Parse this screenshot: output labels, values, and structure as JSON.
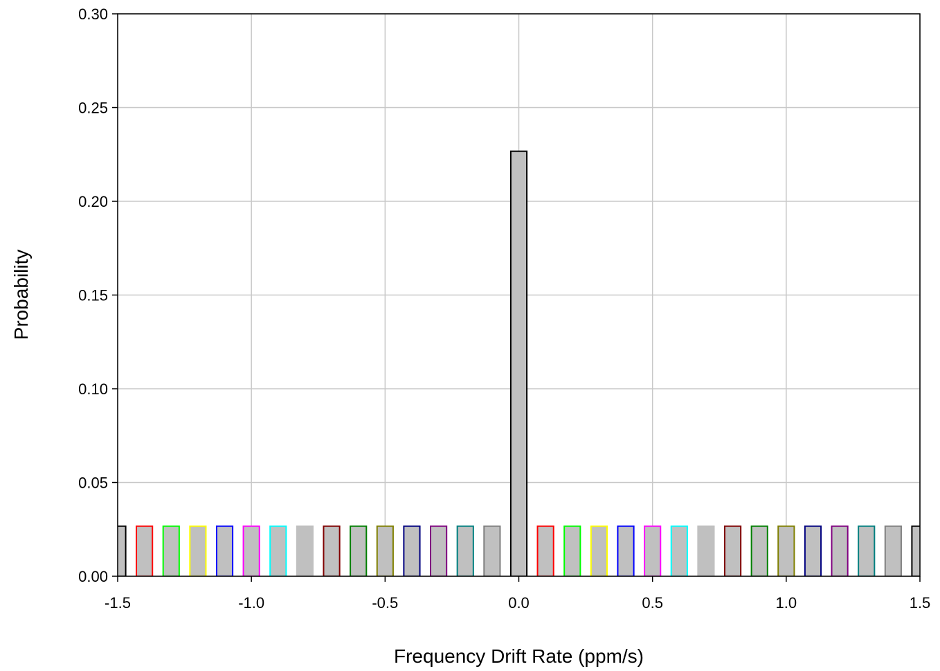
{
  "chart_data": {
    "type": "bar",
    "xlabel": "Frequency Drift Rate (ppm/s)",
    "ylabel": "Probability",
    "xlim": [
      -1.5,
      1.5
    ],
    "ylim": [
      0,
      0.3
    ],
    "grid": true,
    "x_ticks": [
      "-1.5",
      "-1.0",
      "-0.5",
      "0.0",
      "0.5",
      "1.0",
      "1.5"
    ],
    "y_ticks": [
      "0.00",
      "0.05",
      "0.10",
      "0.15",
      "0.20",
      "0.25",
      "0.30"
    ],
    "bin_width": 0.1,
    "bars": [
      {
        "x": -1.5,
        "value": 0.0267,
        "edge_color": "#000000"
      },
      {
        "x": -1.4,
        "value": 0.0267,
        "edge_color": "#ff0000"
      },
      {
        "x": -1.3,
        "value": 0.0267,
        "edge_color": "#00ff00"
      },
      {
        "x": -1.2,
        "value": 0.0267,
        "edge_color": "#ffff00"
      },
      {
        "x": -1.1,
        "value": 0.0267,
        "edge_color": "#0000ff"
      },
      {
        "x": -1.0,
        "value": 0.0267,
        "edge_color": "#ff00ff"
      },
      {
        "x": -0.9,
        "value": 0.0267,
        "edge_color": "#00ffff"
      },
      {
        "x": -0.8,
        "value": 0.0267,
        "edge_color": "#c0c0c0"
      },
      {
        "x": -0.7,
        "value": 0.0267,
        "edge_color": "#800000"
      },
      {
        "x": -0.6,
        "value": 0.0267,
        "edge_color": "#008000"
      },
      {
        "x": -0.5,
        "value": 0.0267,
        "edge_color": "#808000"
      },
      {
        "x": -0.4,
        "value": 0.0267,
        "edge_color": "#000080"
      },
      {
        "x": -0.3,
        "value": 0.0267,
        "edge_color": "#800080"
      },
      {
        "x": -0.2,
        "value": 0.0267,
        "edge_color": "#008080"
      },
      {
        "x": -0.1,
        "value": 0.0267,
        "edge_color": "#808080"
      },
      {
        "x": 0.0,
        "value": 0.2267,
        "edge_color": "#000000"
      },
      {
        "x": 0.1,
        "value": 0.0267,
        "edge_color": "#ff0000"
      },
      {
        "x": 0.2,
        "value": 0.0267,
        "edge_color": "#00ff00"
      },
      {
        "x": 0.3,
        "value": 0.0267,
        "edge_color": "#ffff00"
      },
      {
        "x": 0.4,
        "value": 0.0267,
        "edge_color": "#0000ff"
      },
      {
        "x": 0.5,
        "value": 0.0267,
        "edge_color": "#ff00ff"
      },
      {
        "x": 0.6,
        "value": 0.0267,
        "edge_color": "#00ffff"
      },
      {
        "x": 0.7,
        "value": 0.0267,
        "edge_color": "#c0c0c0"
      },
      {
        "x": 0.8,
        "value": 0.0267,
        "edge_color": "#800000"
      },
      {
        "x": 0.9,
        "value": 0.0267,
        "edge_color": "#008000"
      },
      {
        "x": 1.0,
        "value": 0.0267,
        "edge_color": "#808000"
      },
      {
        "x": 1.1,
        "value": 0.0267,
        "edge_color": "#000080"
      },
      {
        "x": 1.2,
        "value": 0.0267,
        "edge_color": "#800080"
      },
      {
        "x": 1.3,
        "value": 0.0267,
        "edge_color": "#008080"
      },
      {
        "x": 1.4,
        "value": 0.0267,
        "edge_color": "#808080"
      },
      {
        "x": 1.5,
        "value": 0.0267,
        "edge_color": "#000000"
      }
    ],
    "colors": {
      "bar_fill": "#c0c0c0",
      "grid": "#c8c8c8",
      "axis": "#000000"
    }
  }
}
